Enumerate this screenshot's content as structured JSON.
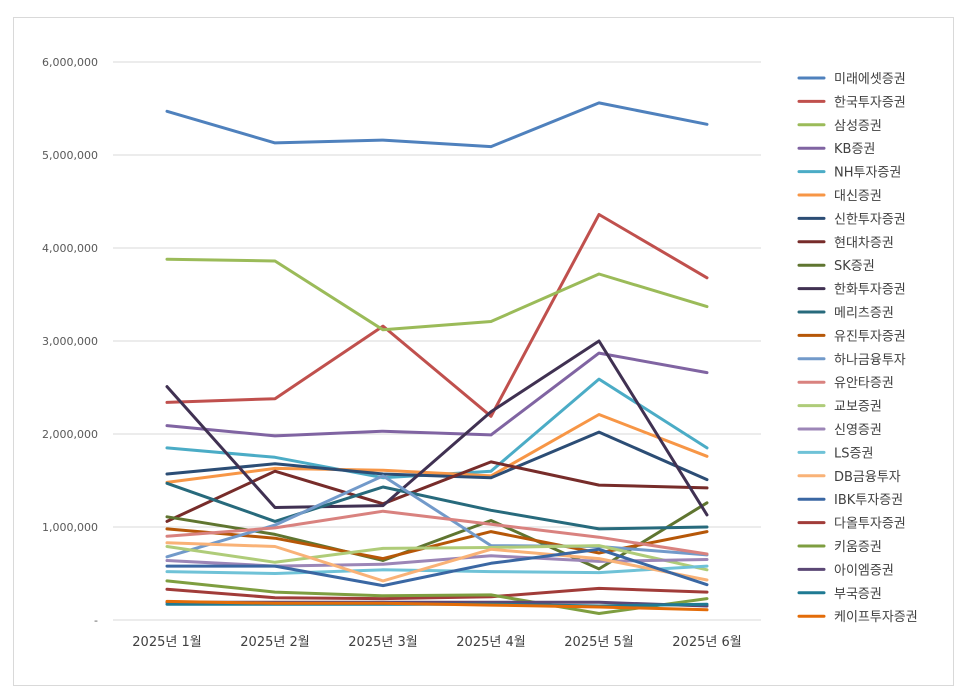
{
  "chart_data": {
    "type": "line",
    "categories": [
      "2025년 1월",
      "2025년 2월",
      "2025년 3월",
      "2025년 4월",
      "2025년 5월",
      "2025년 6월"
    ],
    "ylim": [
      0,
      6000000
    ],
    "yticks": [
      {
        "value": 0,
        "label": "-"
      },
      {
        "value": 1000000,
        "label": "1,000,000"
      },
      {
        "value": 2000000,
        "label": "2,000,000"
      },
      {
        "value": 3000000,
        "label": "3,000,000"
      },
      {
        "value": 4000000,
        "label": "4,000,000"
      },
      {
        "value": 5000000,
        "label": "5,000,000"
      },
      {
        "value": 6000000,
        "label": "6,000,000"
      }
    ],
    "grid": "horizontal",
    "legend": "right",
    "series": [
      {
        "name": "미래에셋증권",
        "color": "#4F81BD",
        "values": [
          5470000,
          5130000,
          5160000,
          5090000,
          5560000,
          5330000
        ]
      },
      {
        "name": "한국투자증권",
        "color": "#C0504D",
        "values": [
          2340000,
          2380000,
          3160000,
          2190000,
          4360000,
          3680000
        ]
      },
      {
        "name": "삼성증권",
        "color": "#9BBB59",
        "values": [
          3880000,
          3860000,
          3120000,
          3210000,
          3720000,
          3370000
        ]
      },
      {
        "name": "KB증권",
        "color": "#8064A2",
        "values": [
          2090000,
          1980000,
          2030000,
          1990000,
          2870000,
          2660000
        ]
      },
      {
        "name": "NH투자증권",
        "color": "#4BACC6",
        "values": [
          1850000,
          1750000,
          1530000,
          1600000,
          2590000,
          1850000
        ]
      },
      {
        "name": "대신증권",
        "color": "#F79646",
        "values": [
          1480000,
          1630000,
          1610000,
          1550000,
          2210000,
          1760000
        ]
      },
      {
        "name": "신한투자증권",
        "color": "#2C4D75",
        "values": [
          1570000,
          1680000,
          1570000,
          1530000,
          2020000,
          1510000
        ]
      },
      {
        "name": "현대차증권",
        "color": "#772C2A",
        "values": [
          1060000,
          1600000,
          1250000,
          1700000,
          1450000,
          1420000
        ]
      },
      {
        "name": "SK증권",
        "color": "#5F7530",
        "values": [
          1110000,
          920000,
          640000,
          1070000,
          550000,
          1260000
        ]
      },
      {
        "name": "한화투자증권",
        "color": "#403152",
        "values": [
          2510000,
          1210000,
          1230000,
          2240000,
          3000000,
          1130000
        ]
      },
      {
        "name": "메리츠증권",
        "color": "#276A7C",
        "values": [
          1470000,
          1060000,
          1430000,
          1180000,
          980000,
          1000000
        ]
      },
      {
        "name": "유진투자증권",
        "color": "#B65708",
        "values": [
          980000,
          880000,
          660000,
          950000,
          720000,
          950000
        ]
      },
      {
        "name": "하나금융투자",
        "color": "#729ACA",
        "values": [
          680000,
          1020000,
          1550000,
          800000,
          790000,
          700000
        ]
      },
      {
        "name": "유안타증권",
        "color": "#D9827F",
        "values": [
          900000,
          990000,
          1170000,
          1030000,
          890000,
          710000
        ]
      },
      {
        "name": "교보증권",
        "color": "#AFCC79",
        "values": [
          790000,
          620000,
          770000,
          780000,
          800000,
          540000
        ]
      },
      {
        "name": "신영증권",
        "color": "#9C86B7",
        "values": [
          640000,
          580000,
          600000,
          690000,
          630000,
          650000
        ]
      },
      {
        "name": "LS증권",
        "color": "#6FC2D7",
        "values": [
          520000,
          500000,
          540000,
          520000,
          510000,
          580000
        ]
      },
      {
        "name": "DB금융투자",
        "color": "#F9B277",
        "values": [
          830000,
          790000,
          420000,
          760000,
          660000,
          430000
        ]
      },
      {
        "name": "IBK투자증권",
        "color": "#3A67A3",
        "values": [
          580000,
          580000,
          370000,
          610000,
          760000,
          380000
        ]
      },
      {
        "name": "다올투자증권",
        "color": "#A13C39",
        "values": [
          330000,
          240000,
          230000,
          250000,
          340000,
          300000
        ]
      },
      {
        "name": "키움증권",
        "color": "#7E9E40",
        "values": [
          420000,
          300000,
          260000,
          270000,
          70000,
          230000
        ]
      },
      {
        "name": "아이엠증권",
        "color": "#5B4775",
        "values": [
          190000,
          190000,
          190000,
          190000,
          190000,
          150000
        ]
      },
      {
        "name": "부국증권",
        "color": "#1F7A93",
        "values": [
          170000,
          170000,
          170000,
          170000,
          150000,
          170000
        ]
      },
      {
        "name": "케이프투자증권",
        "color": "#E36C09",
        "values": [
          200000,
          180000,
          180000,
          160000,
          140000,
          110000
        ]
      }
    ]
  }
}
